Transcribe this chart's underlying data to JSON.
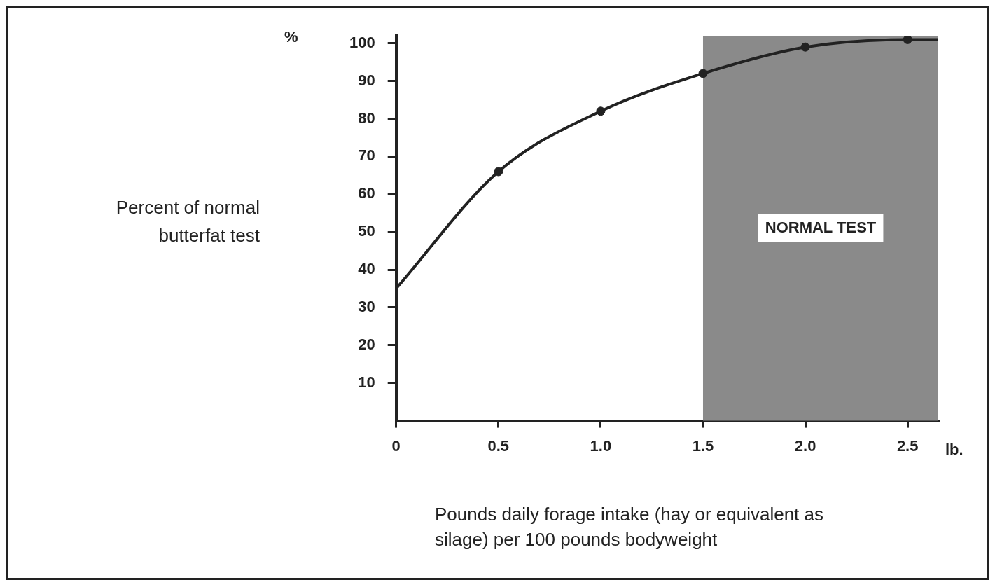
{
  "chart_data": {
    "type": "line",
    "ylabel": "Percent of normal butterfat test",
    "xlabel": "Pounds daily forage intake (hay or equivalent as silage) per 100 pounds bodyweight",
    "annotations": [
      "%",
      "lb."
    ],
    "series": [
      {
        "type": "line",
        "color": "#222222",
        "marker": "none",
        "x": [
          0,
          0.5,
          1,
          1.5,
          2,
          2.5,
          2.65
        ],
        "values": [
          35,
          66,
          82,
          92,
          99,
          101,
          101
        ]
      },
      {
        "type": "scatter",
        "color": "#222222",
        "marker": "circle",
        "x": [
          0.5,
          1,
          1.5,
          2,
          2.5
        ],
        "values": [
          66,
          82,
          92,
          99,
          101
        ]
      }
    ],
    "xlim": [
      0,
      2.65
    ],
    "xticks": [
      0,
      0.5,
      {
        "value": 1,
        "label": "1.0"
      },
      1.5,
      {
        "value": 2,
        "label": "2.0"
      },
      2.5
    ],
    "ylim": [
      0,
      102
    ],
    "yticks": [
      10,
      20,
      30,
      40,
      50,
      60,
      70,
      80,
      90,
      100
    ],
    "bands": [
      {
        "axis": "x",
        "from": 1.5,
        "to": 2.65,
        "label": "NORMAL TEST",
        "color": "#8a8a8a"
      }
    ],
    "grid": false,
    "legend": false
  }
}
